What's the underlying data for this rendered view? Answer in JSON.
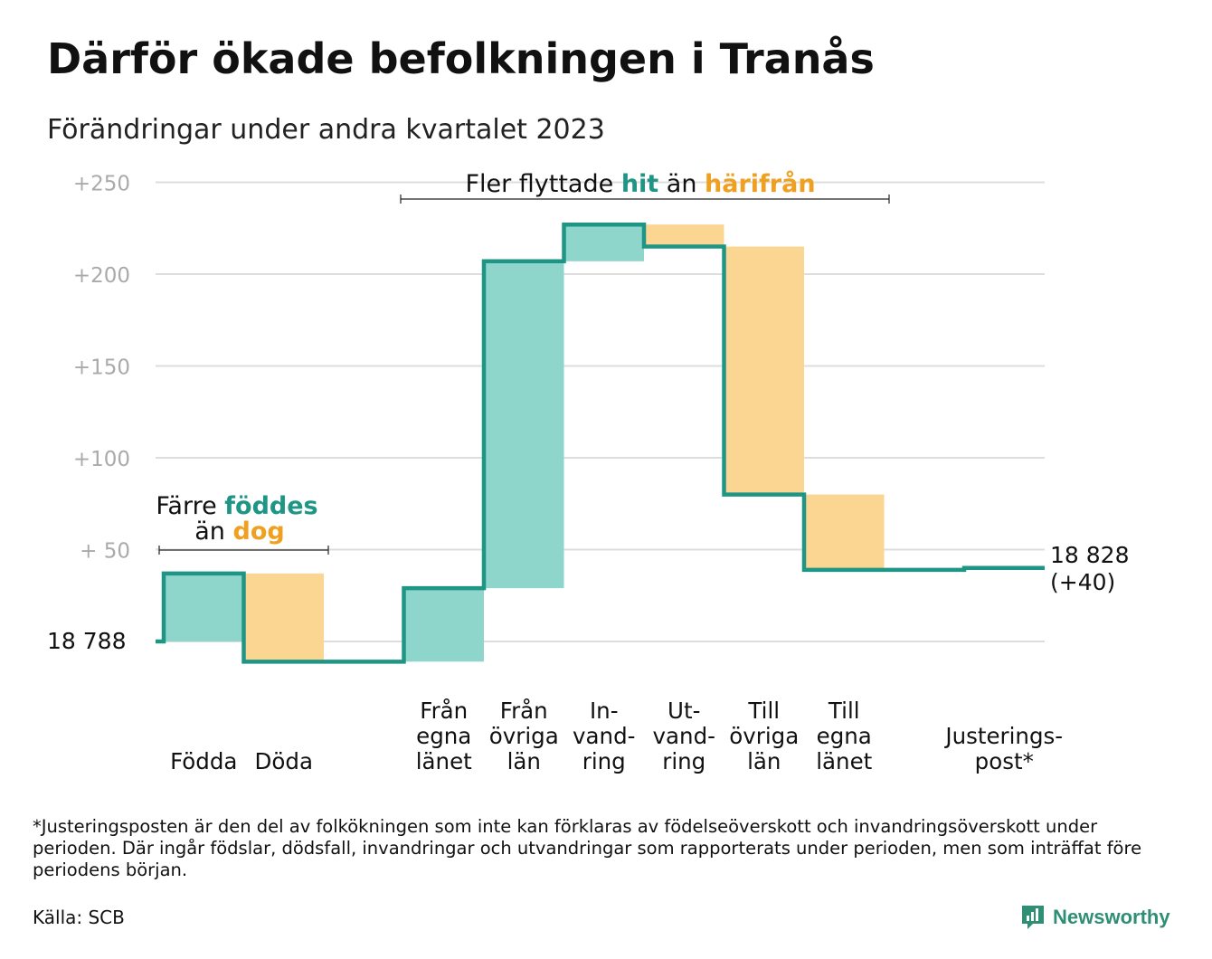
{
  "title": "Därför ökade befolkningen i Tranås",
  "subtitle": "Förändringar under andra kvartalet 2023",
  "footnote": "*Justeringsposten är den del av folkökningen som inte kan förklaras av födelseöverskott och invandringsöverskott under perioden. Där ingår födslar, dödsfall, invandringar och utvandringar som rapporterats under perioden, men som inträffat före periodens början.",
  "source": "Källa: SCB",
  "logo_text": "Newsworthy",
  "colors": {
    "increase": "#8ed5cb",
    "decrease": "#fbd592",
    "line": "#1f9585",
    "teal_text": "#1f9585",
    "orange_text": "#f0a020",
    "grid": "#dddddd",
    "tick_text": "#aaaaaa"
  },
  "annotations": {
    "births_deaths": {
      "line1_prefix": "Färre ",
      "line1_highlight": "föddes",
      "line2_prefix": "än ",
      "line2_highlight": "dog"
    },
    "migration": {
      "prefix": "Fler flyttade ",
      "highlight1": "hit",
      "middle": " än ",
      "highlight2": "härifrån"
    }
  },
  "chart_data": {
    "type": "waterfall",
    "start_label": "18 788",
    "end_label": [
      "18 828",
      "(+40)"
    ],
    "start_value": 0,
    "end_value": 40,
    "ylim": [
      -12,
      252
    ],
    "yticks": [
      {
        "value": 50,
        "label": "+  50"
      },
      {
        "value": 100,
        "label": "+100"
      },
      {
        "value": 150,
        "label": "+150"
      },
      {
        "value": 200,
        "label": "+200"
      },
      {
        "value": 250,
        "label": "+250"
      }
    ],
    "grid": true,
    "steps": [
      {
        "label": [
          "",
          "",
          "Födda"
        ],
        "value": 37,
        "from": 0,
        "to": 37
      },
      {
        "label": [
          "",
          "",
          "Döda"
        ],
        "value": -48,
        "from": 37,
        "to": -11
      },
      {
        "label": [
          "",
          "",
          ""
        ],
        "value": 0,
        "from": -11,
        "to": -11
      },
      {
        "label": [
          "Från",
          "egna",
          "länet"
        ],
        "value": 40,
        "from": -11,
        "to": 29
      },
      {
        "label": [
          "Från",
          "övriga",
          "län"
        ],
        "value": 178,
        "from": 29,
        "to": 207
      },
      {
        "label": [
          "In-",
          "vand-",
          "ring"
        ],
        "value": 20,
        "from": 207,
        "to": 227
      },
      {
        "label": [
          "Ut-",
          "vand-",
          "ring"
        ],
        "value": -12,
        "from": 227,
        "to": 215
      },
      {
        "label": [
          "Till",
          "övriga",
          "län"
        ],
        "value": -135,
        "from": 215,
        "to": 80
      },
      {
        "label": [
          "Till",
          "egna",
          "länet"
        ],
        "value": -41,
        "from": 80,
        "to": 39
      },
      {
        "label": [
          "",
          "",
          ""
        ],
        "value": 0,
        "from": 39,
        "to": 39
      },
      {
        "label": [
          "",
          "Justerings-",
          "post*"
        ],
        "value": 1,
        "from": 39,
        "to": 40
      }
    ]
  }
}
